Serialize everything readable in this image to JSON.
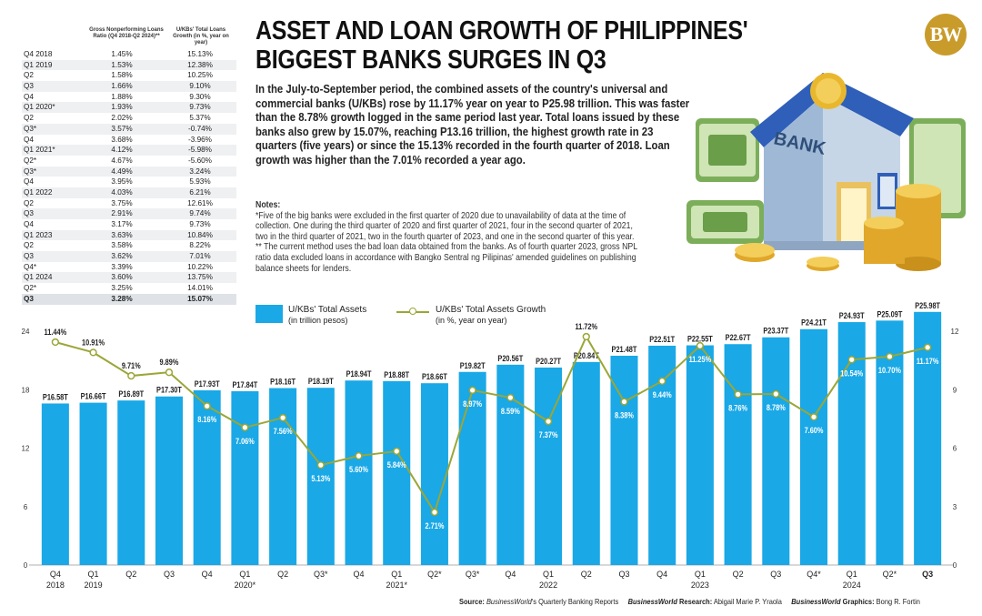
{
  "title": "ASSET AND LOAN GROWTH OF PHILIPPINES' BIGGEST BANKS SURGES IN Q3",
  "logo": "BW",
  "intro": "In the July-to-September period, the combined assets of the country's universal and commercial banks (U/KBs) rose by 11.17% year on year to P25.98 trillion. This was faster than the 8.78% growth logged in the same period last year. Total loans issued by these banks also grew by 15.07%, reaching P13.16 trillion, the highest growth rate in 23 quarters (five years) or since the 15.13% recorded in the fourth quarter of 2018. Loan growth was higher than the 7.01% recorded a year ago.",
  "notes": {
    "heading": "Notes:",
    "note1": "*Five of the big banks were excluded in the first quarter of 2020 due to unavailability of data at the time of collection. One during the third quarter of 2020 and first quarter of 2021, four in the second quarter of 2021, two in the third quarter of 2021, two in the fourth quarter of 2023, and one in the second quarter of this year.",
    "note2": "** The current method uses the bad loan data obtained from the banks. As of fourth quarter 2023, gross NPL ratio data excluded loans in accordance with Bangko Sentral ng Pilipinas' amended guidelines on publishing balance sheets for lenders."
  },
  "illustration_label": "BANK",
  "table": {
    "col2_header": "Gross Nonperforming Loans Ratio (Q4 2018-Q2 2024)**",
    "col3_header": "U/KBs' Total Loans Growth (in %, year on year)",
    "rows": [
      [
        "Q4 2018",
        "1.45%",
        "15.13%"
      ],
      [
        "Q1 2019",
        "1.53%",
        "12.38%"
      ],
      [
        "Q2",
        "1.58%",
        "10.25%"
      ],
      [
        "Q3",
        "1.66%",
        "9.10%"
      ],
      [
        "Q4",
        "1.88%",
        "9.30%"
      ],
      [
        "Q1 2020*",
        "1.93%",
        "9.73%"
      ],
      [
        "Q2",
        "2.02%",
        "5.37%"
      ],
      [
        "Q3*",
        "3.57%",
        "-0.74%"
      ],
      [
        "Q4",
        "3.68%",
        "-3.96%"
      ],
      [
        "Q1 2021*",
        "4.12%",
        "-5.98%"
      ],
      [
        "Q2*",
        "4.67%",
        "-5.60%"
      ],
      [
        "Q3*",
        "4.49%",
        "3.24%"
      ],
      [
        "Q4",
        "3.95%",
        "5.93%"
      ],
      [
        "Q1 2022",
        "4.03%",
        "6.21%"
      ],
      [
        "Q2",
        "3.75%",
        "12.61%"
      ],
      [
        "Q3",
        "2.91%",
        "9.74%"
      ],
      [
        "Q4",
        "3.17%",
        "9.73%"
      ],
      [
        "Q1 2023",
        "3.63%",
        "10.84%"
      ],
      [
        "Q2",
        "3.58%",
        "8.22%"
      ],
      [
        "Q3",
        "3.62%",
        "7.01%"
      ],
      [
        "Q4*",
        "3.39%",
        "10.22%"
      ],
      [
        "Q1 2024",
        "3.60%",
        "13.75%"
      ],
      [
        "Q2*",
        "3.25%",
        "14.01%"
      ],
      [
        "Q3",
        "3.28%",
        "15.07%"
      ]
    ]
  },
  "legend": {
    "assets_label": "U/KBs' Total Assets",
    "assets_unit": "(in trillion pesos)",
    "growth_label": "U/KBs' Total Assets Growth",
    "growth_unit": "(in %, year on year)"
  },
  "footer": {
    "source_label": "Source:",
    "source_brand": "BusinessWorld",
    "source_text": "'s Quarterly Banking Reports",
    "research_brand": "BusinessWorld",
    "research_label": "Research:",
    "research_name": "Abigail Marie P. Yraola",
    "graphics_brand": "BusinessWorld",
    "graphics_label": "Graphics:",
    "graphics_name": "Bong R. Fortin"
  },
  "colors": {
    "bar": "#1aa8e6",
    "bar_highlight": "#1aa8e6",
    "line": "#9ba637",
    "grid": "#999999",
    "logo": "#c89b2b"
  },
  "chart_data": {
    "type": "bar",
    "categories": [
      [
        "Q4",
        "2018"
      ],
      [
        "Q1",
        "2019"
      ],
      [
        "Q2",
        ""
      ],
      [
        "Q3",
        ""
      ],
      [
        "Q4",
        ""
      ],
      [
        "Q1",
        "2020*"
      ],
      [
        "Q2",
        ""
      ],
      [
        "Q3*",
        ""
      ],
      [
        "Q4",
        ""
      ],
      [
        "Q1",
        "2021*"
      ],
      [
        "Q2*",
        ""
      ],
      [
        "Q3*",
        ""
      ],
      [
        "Q4",
        ""
      ],
      [
        "Q1",
        "2022"
      ],
      [
        "Q2",
        ""
      ],
      [
        "Q3",
        ""
      ],
      [
        "Q4",
        ""
      ],
      [
        "Q1",
        "2023"
      ],
      [
        "Q2",
        ""
      ],
      [
        "Q3",
        ""
      ],
      [
        "Q4*",
        ""
      ],
      [
        "Q1",
        "2024"
      ],
      [
        "Q2*",
        ""
      ],
      [
        "Q3",
        ""
      ]
    ],
    "series": [
      {
        "name": "U/KBs' Total Assets",
        "kind": "bar",
        "axis": "left",
        "values": [
          16.58,
          16.66,
          16.89,
          17.3,
          17.93,
          17.84,
          18.16,
          18.19,
          18.94,
          18.88,
          18.66,
          19.82,
          20.56,
          20.27,
          20.84,
          21.48,
          22.51,
          22.55,
          22.67,
          23.37,
          24.21,
          24.93,
          25.09,
          25.98
        ],
        "labels": [
          "P16.58T",
          "P16.66T",
          "P16.89T",
          "P17.30T",
          "P17.93T",
          "P17.84T",
          "P18.16T",
          "P18.19T",
          "P18.94T",
          "P18.88T",
          "P18.66T",
          "P19.82T",
          "P20.56T",
          "P20.27T",
          "P20.84T",
          "P21.48T",
          "P22.51T",
          "P22.55T",
          "P22.67T",
          "P23.37T",
          "P24.21T",
          "P24.93T",
          "P25.09T",
          "P25.98T"
        ]
      },
      {
        "name": "U/KBs' Total Assets Growth",
        "kind": "line",
        "axis": "right",
        "values": [
          11.44,
          10.91,
          9.71,
          9.89,
          8.16,
          7.06,
          7.56,
          5.13,
          5.6,
          5.84,
          2.71,
          8.97,
          8.59,
          7.37,
          11.72,
          8.38,
          9.44,
          11.25,
          8.76,
          8.78,
          7.6,
          10.54,
          10.7,
          11.17
        ],
        "labels": [
          "11.44%",
          "10.91%",
          "9.71%",
          "9.89%",
          "8.16%",
          "7.06%",
          "7.56%",
          "5.13%",
          "5.60%",
          "5.84%",
          "2.71%",
          "8.97%",
          "8.59%",
          "7.37%",
          "11.72%",
          "8.38%",
          "9.44%",
          "11.25%",
          "8.76%",
          "8.78%",
          "7.60%",
          "10.54%",
          "10.70%",
          "11.17%"
        ]
      }
    ],
    "ylim_left": [
      0,
      24
    ],
    "yticks_left": [
      "0",
      "6",
      "12",
      "18",
      "24"
    ],
    "ylim_right": [
      0,
      12
    ],
    "yticks_right": [
      "0",
      "3",
      "6",
      "9",
      "12"
    ],
    "grid": false
  }
}
